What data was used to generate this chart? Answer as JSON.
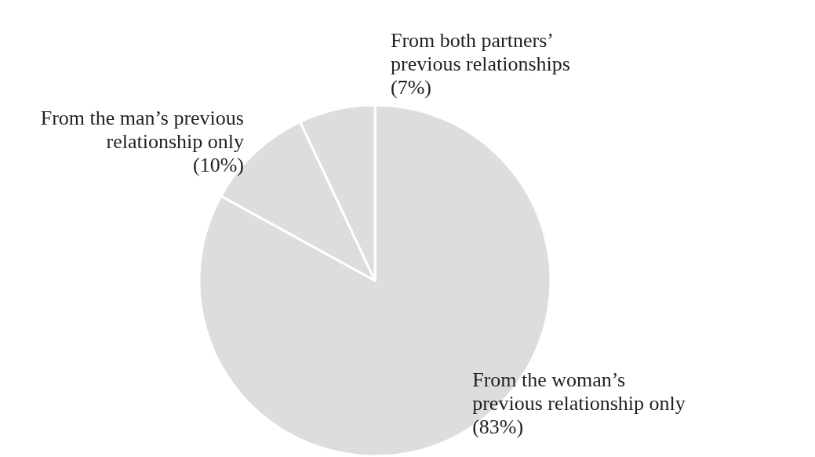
{
  "chart_data": {
    "type": "pie",
    "categories": [
      "From the woman’s\nprevious relationship only",
      "From the man’s previous\nrelationship only",
      "From both partners’\nprevious relationships"
    ],
    "values": [
      83,
      10,
      7
    ],
    "value_labels": [
      "(83%)",
      "(10%)",
      "(7%)"
    ],
    "colors": [
      "#dcdddf",
      "#dcdddf",
      "#dcdddf"
    ]
  }
}
